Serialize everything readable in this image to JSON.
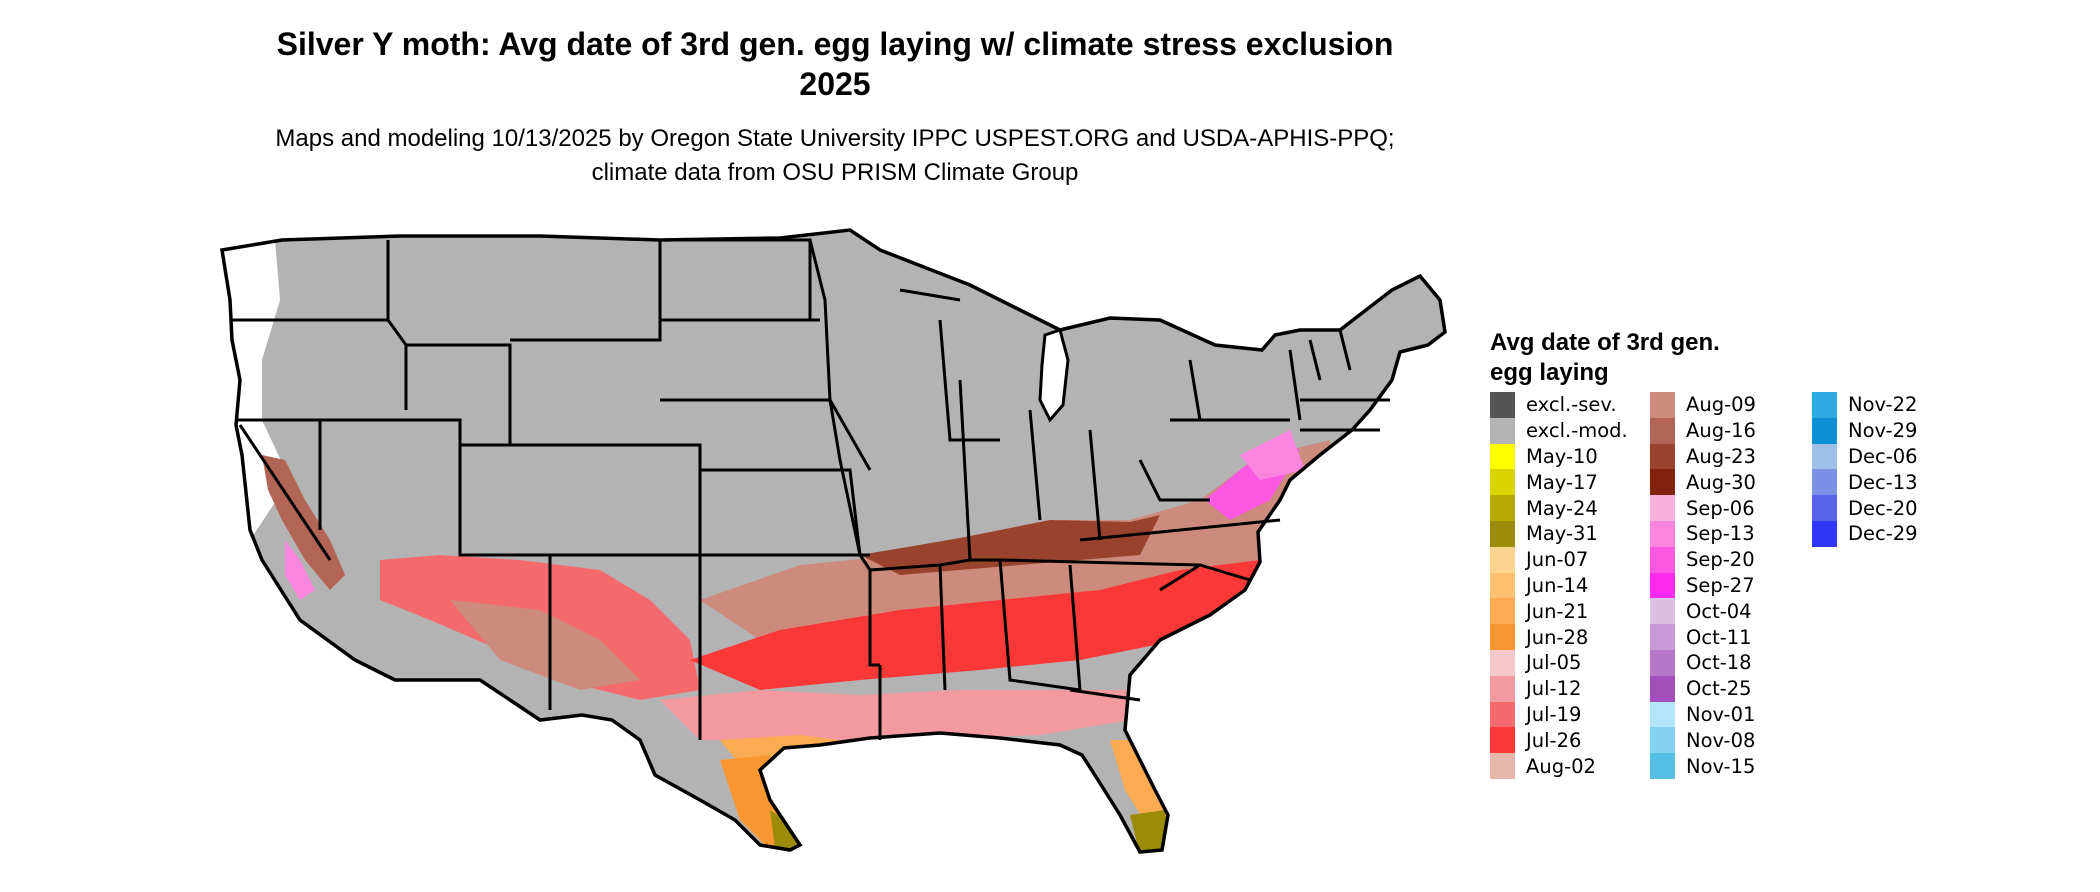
{
  "title": "Silver Y moth: Avg date of 3rd gen. egg laying w/ climate stress exclusion 2025",
  "subtitle": "Maps and modeling 10/13/2025 by Oregon State University IPPC USPEST.ORG and USDA-APHIS-PPQ; climate data from OSU PRISM Climate Group",
  "legend": {
    "title": "Avg date of 3rd gen. egg laying",
    "items": [
      {
        "label": "excl.-sev.",
        "color": "#555555"
      },
      {
        "label": "excl.-mod.",
        "color": "#b3b3b3"
      },
      {
        "label": "May-10",
        "color": "#ffff00"
      },
      {
        "label": "May-17",
        "color": "#dcd400"
      },
      {
        "label": "May-24",
        "color": "#b8aa00"
      },
      {
        "label": "May-31",
        "color": "#9c8b06"
      },
      {
        "label": "Jun-07",
        "color": "#fdd48e"
      },
      {
        "label": "Jun-14",
        "color": "#fcc070"
      },
      {
        "label": "Jun-21",
        "color": "#fbab52"
      },
      {
        "label": "Jun-28",
        "color": "#f9962f"
      },
      {
        "label": "Jul-05",
        "color": "#f5c8cc"
      },
      {
        "label": "Jul-12",
        "color": "#f39aa0"
      },
      {
        "label": "Jul-19",
        "color": "#f56a6c"
      },
      {
        "label": "Jul-26",
        "color": "#fb3838"
      },
      {
        "label": "Aug-02",
        "color": "#e6b6a8"
      },
      {
        "label": "Aug-09",
        "color": "#cc8b7d"
      },
      {
        "label": "Aug-16",
        "color": "#b36555"
      },
      {
        "label": "Aug-23",
        "color": "#99432f"
      },
      {
        "label": "Aug-30",
        "color": "#80220c"
      },
      {
        "label": "Sep-06",
        "color": "#fbb1de"
      },
      {
        "label": "Sep-13",
        "color": "#fb84df"
      },
      {
        "label": "Sep-20",
        "color": "#fb57e3"
      },
      {
        "label": "Sep-27",
        "color": "#ff2aed"
      },
      {
        "label": "Oct-04",
        "color": "#dcbfe4"
      },
      {
        "label": "Oct-11",
        "color": "#c99bd6"
      },
      {
        "label": "Oct-18",
        "color": "#b677c9"
      },
      {
        "label": "Oct-25",
        "color": "#a24fbc"
      },
      {
        "label": "Nov-01",
        "color": "#b3e6fa"
      },
      {
        "label": "Nov-08",
        "color": "#82d2f0"
      },
      {
        "label": "Nov-15",
        "color": "#56bfe6"
      },
      {
        "label": "Nov-22",
        "color": "#2ca9e0"
      },
      {
        "label": "Nov-29",
        "color": "#0d8fd4"
      },
      {
        "label": "Dec-06",
        "color": "#9ebfe8"
      },
      {
        "label": "Dec-13",
        "color": "#7c91e6"
      },
      {
        "label": "Dec-20",
        "color": "#5a64ea"
      },
      {
        "label": "Dec-29",
        "color": "#2f36f5"
      }
    ]
  },
  "map": {
    "region": "Contiguous United States",
    "excluded_color": "#b3b3b3",
    "border_color": "#000000"
  }
}
